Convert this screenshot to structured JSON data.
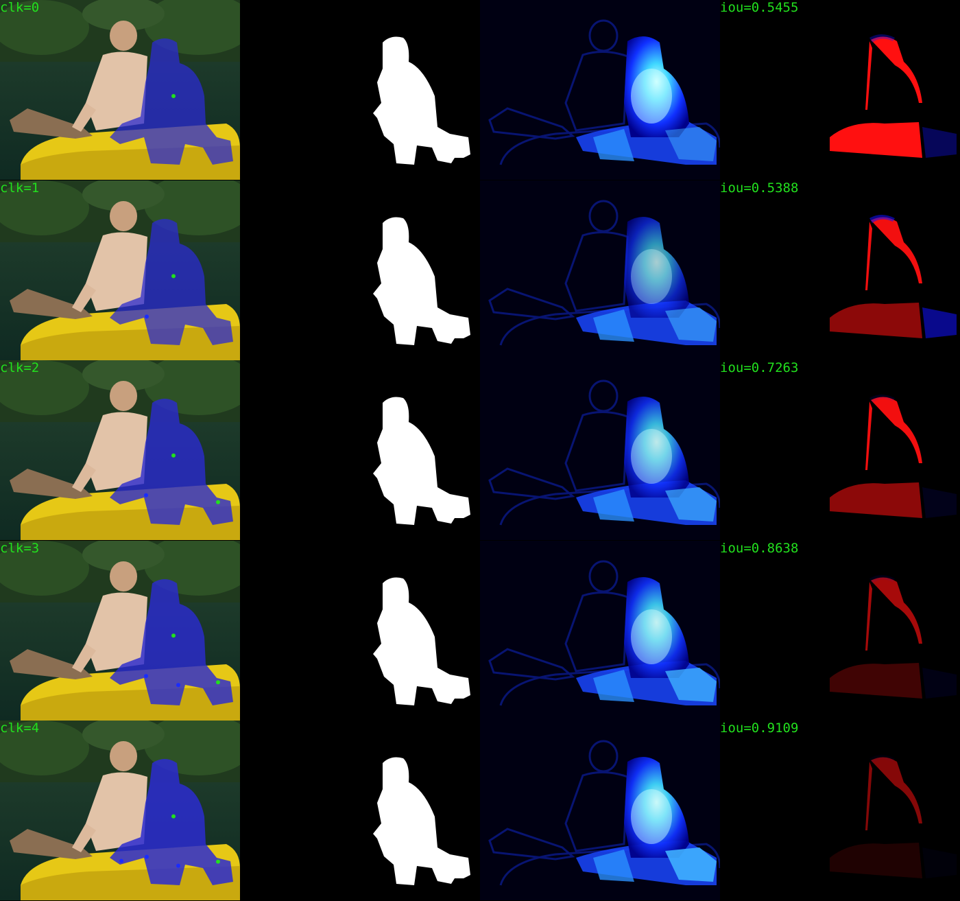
{
  "rows": [
    {
      "click_label": "clk=0",
      "iou_label": "iou=0.5455"
    },
    {
      "click_label": "clk=1",
      "iou_label": "iou=0.5388"
    },
    {
      "click_label": "clk=2",
      "iou_label": "iou=0.7263"
    },
    {
      "click_label": "clk=3",
      "iou_label": "iou=0.8638"
    },
    {
      "click_label": "clk=4",
      "iou_label": "iou=0.9109"
    }
  ],
  "colors": {
    "label": "#22e01e",
    "positive_click": "#22e01e",
    "negative_click": "#1a2cff",
    "mask_overlay": "#2a2ad0",
    "gt_mask": "#ffffff",
    "false_negative": "#ff1010",
    "false_positive": "#1010ff",
    "heatmap_low": "#000060",
    "heatmap_high": "#b0ffff"
  }
}
